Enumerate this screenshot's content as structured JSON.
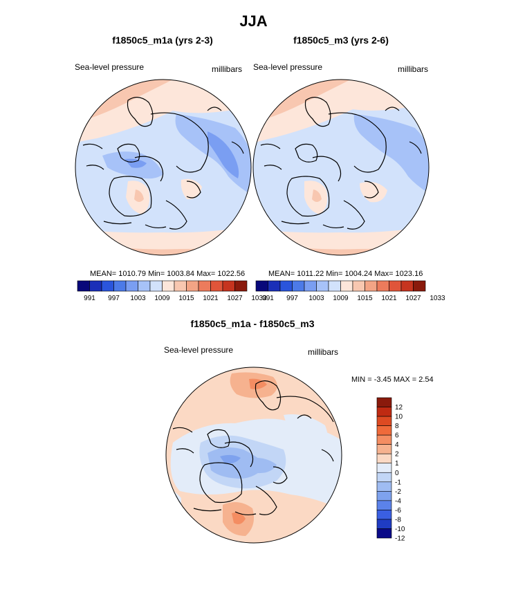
{
  "title": "JJA",
  "chart_data": [
    {
      "type": "heatmap",
      "title": "f1850c5_m1a (yrs 2-3)",
      "left_label": "Sea-level pressure",
      "right_label": "millibars",
      "stats": "MEAN= 1010.79  Min= 1003.84  Max= 1022.56",
      "mean": 1010.79,
      "min": 1003.84,
      "max": 1022.56,
      "colorbar_ticks": [
        "991",
        "997",
        "1003",
        "1009",
        "1015",
        "1021",
        "1027",
        "1033"
      ]
    },
    {
      "type": "heatmap",
      "title": "f1850c5_m3 (yrs 2-6)",
      "left_label": "Sea-level pressure",
      "right_label": "millibars",
      "stats": "MEAN= 1011.22  Min= 1004.24  Max= 1023.16",
      "mean": 1011.22,
      "min": 1004.24,
      "max": 1023.16,
      "colorbar_ticks": [
        "991",
        "997",
        "1003",
        "1009",
        "1015",
        "1021",
        "1027",
        "1033"
      ]
    },
    {
      "type": "heatmap",
      "title": "f1850c5_m1a - f1850c5_m3",
      "left_label": "Sea-level pressure",
      "right_label": "millibars",
      "stats": "MIN =  -3.45 MAX =   2.54",
      "min": -3.45,
      "max": 2.54,
      "colorbar_ticks": [
        "12",
        "10",
        "8",
        "6",
        "4",
        "2",
        "1",
        "0",
        "-1",
        "-2",
        "-4",
        "-6",
        "-8",
        "-10",
        "-12"
      ]
    }
  ],
  "colors": {
    "abs_palette": [
      "#08087a",
      "#1a2fb8",
      "#2a55dc",
      "#4c7ae8",
      "#7a9ef2",
      "#a7c2f8",
      "#d2e2fb",
      "#fde6da",
      "#f8c7b0",
      "#f3a485",
      "#ec7b5c",
      "#e0553a",
      "#c6341f",
      "#8a1a0c"
    ],
    "diff_palette": [
      "#8a1a0c",
      "#bf2a12",
      "#dd4a22",
      "#ef6a3a",
      "#f48d62",
      "#f6b28f",
      "#fbd9c4",
      "#e3ecf9",
      "#c2d6f6",
      "#9fbcf2",
      "#7ea2ee",
      "#5b82ea",
      "#3a5fe2",
      "#1f3cc2",
      "#0a0a88"
    ]
  }
}
